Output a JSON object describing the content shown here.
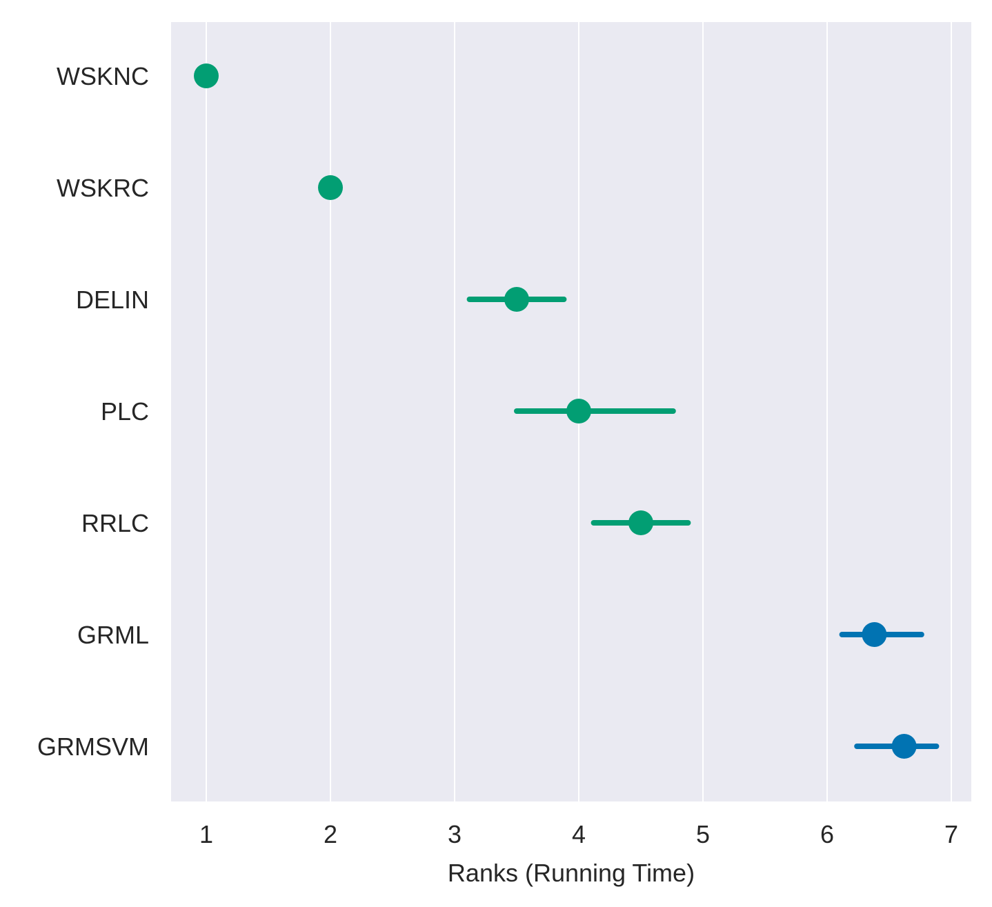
{
  "chart_data": {
    "type": "scatter",
    "style": "point-range",
    "title": "",
    "xlabel": "Ranks (Running Time)",
    "ylabel": "",
    "xlim": [
      0.72,
      7.16
    ],
    "xticks": [
      1,
      2,
      3,
      4,
      5,
      6,
      7
    ],
    "grid": "vertical",
    "legend": "none",
    "background_color": "#eaeaf2",
    "grid_color": "#ffffff",
    "categories": [
      "WSKNC",
      "WSKRC",
      "DELIN",
      "PLC",
      "RRLC",
      "GRML",
      "GRMSVM"
    ],
    "points": [
      {
        "label": "WSKNC",
        "value": 1.0,
        "low": 1.0,
        "high": 1.0,
        "color": "#029e73"
      },
      {
        "label": "WSKRC",
        "value": 2.0,
        "low": 2.0,
        "high": 2.0,
        "color": "#029e73"
      },
      {
        "label": "DELIN",
        "value": 3.5,
        "low": 3.12,
        "high": 3.88,
        "color": "#029e73"
      },
      {
        "label": "PLC",
        "value": 4.0,
        "low": 3.5,
        "high": 4.76,
        "color": "#029e73"
      },
      {
        "label": "RRLC",
        "value": 4.5,
        "low": 4.12,
        "high": 4.88,
        "color": "#029e73"
      },
      {
        "label": "GRML",
        "value": 6.38,
        "low": 6.12,
        "high": 6.76,
        "color": "#0173b2"
      },
      {
        "label": "GRMSVM",
        "value": 6.62,
        "low": 6.24,
        "high": 6.88,
        "color": "#0173b2"
      }
    ]
  }
}
